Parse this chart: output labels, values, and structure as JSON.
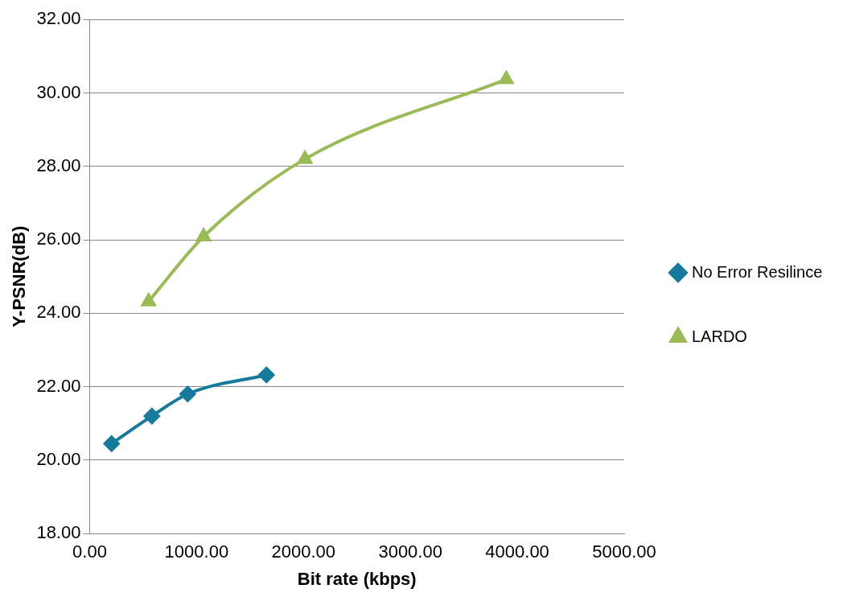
{
  "chart_data": {
    "type": "line",
    "xlabel": "Bit rate (kbps)",
    "ylabel": "Y-PSNR(dB)",
    "series": [
      {
        "name": "No Error Resilince",
        "color": "#17799b",
        "marker": "diamond",
        "x": [
          205,
          582,
          917,
          1654
        ],
        "values": [
          20.45,
          21.2,
          21.8,
          22.32
        ]
      },
      {
        "name": "LARDO",
        "color": "#9bbb59",
        "marker": "triangle",
        "x": [
          551,
          1066,
          2014,
          3897
        ],
        "values": [
          24.32,
          26.09,
          28.2,
          30.37
        ]
      }
    ],
    "xlim": [
      0,
      5000
    ],
    "xticks": [
      {
        "value": 0,
        "label": "0.00"
      },
      {
        "value": 1000,
        "label": "1000.00"
      },
      {
        "value": 2000,
        "label": "2000.00"
      },
      {
        "value": 3000,
        "label": "3000.00"
      },
      {
        "value": 4000,
        "label": "4000.00"
      },
      {
        "value": 5000,
        "label": "5000.00"
      }
    ],
    "ylim": [
      18,
      32
    ],
    "yticks": [
      {
        "value": 18,
        "label": "18.00"
      },
      {
        "value": 20,
        "label": "20.00"
      },
      {
        "value": 22,
        "label": "22.00"
      },
      {
        "value": 24,
        "label": "24.00"
      },
      {
        "value": 26,
        "label": "26.00"
      },
      {
        "value": 28,
        "label": "28.00"
      },
      {
        "value": 30,
        "label": "30.00"
      },
      {
        "value": 32,
        "label": "32.00"
      }
    ],
    "grid": "y",
    "legend": "right"
  }
}
